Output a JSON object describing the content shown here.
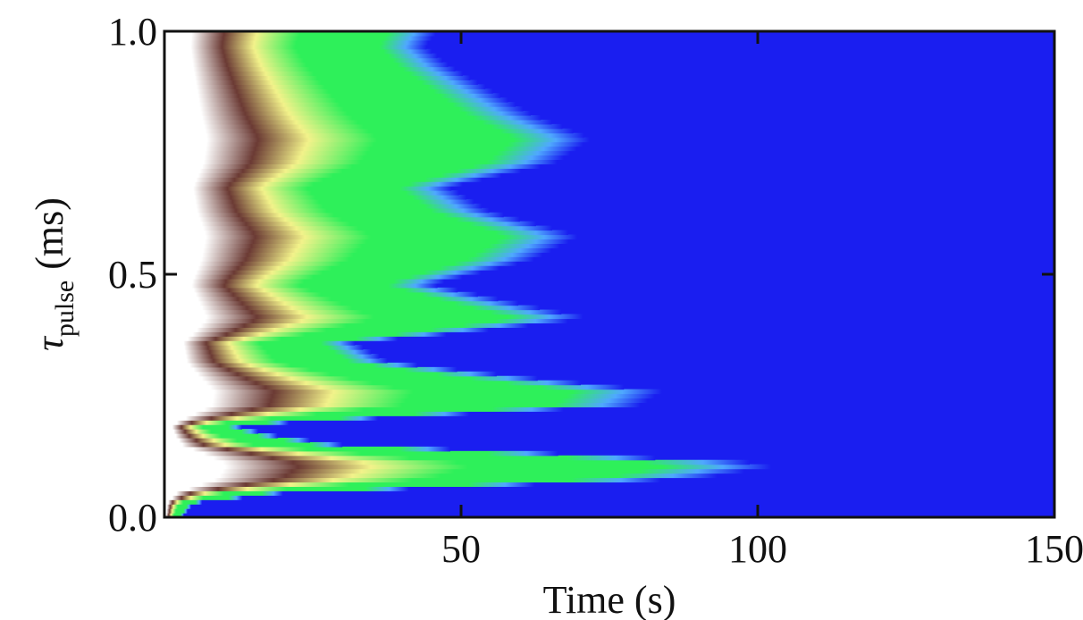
{
  "chart_data": {
    "type": "heatmap",
    "title": "",
    "xlabel": "Time (s)",
    "ylabel": {
      "symbol": "τ",
      "subscript": "pulse",
      "unit": "(ms)"
    },
    "xlim": [
      0,
      150
    ],
    "ylim": [
      0.0,
      1.0
    ],
    "xticks": [
      0,
      50,
      100,
      150
    ],
    "xtick_labels": [
      "",
      "50",
      "100",
      "150"
    ],
    "yticks": [
      0.0,
      0.5,
      1.0
    ],
    "ytick_labels": [
      "0.0",
      "0.5",
      "1.0"
    ],
    "grid": false,
    "colormap": [
      "#ffffff",
      "#6b3a34",
      "#f2f28a",
      "#2ef05a",
      "#4fa8ff",
      "#1a1ef0"
    ],
    "background_color": "#1a1ef0",
    "front_profile": {
      "description_free": true,
      "tau": [
        0.0,
        0.03,
        0.05,
        0.08,
        0.11,
        0.13,
        0.15,
        0.17,
        0.19,
        0.21,
        0.23,
        0.26,
        0.29,
        0.32,
        0.36,
        0.38,
        0.41,
        0.44,
        0.48,
        0.53,
        0.58,
        0.63,
        0.68,
        0.73,
        0.78,
        0.83,
        0.88,
        0.93,
        0.97,
        1.0
      ],
      "extent_s": [
        3,
        5,
        20,
        90,
        105,
        70,
        30,
        18,
        12,
        45,
        80,
        84,
        60,
        38,
        32,
        50,
        72,
        60,
        45,
        62,
        70,
        55,
        48,
        66,
        72,
        62,
        55,
        48,
        44,
        46
      ]
    }
  }
}
